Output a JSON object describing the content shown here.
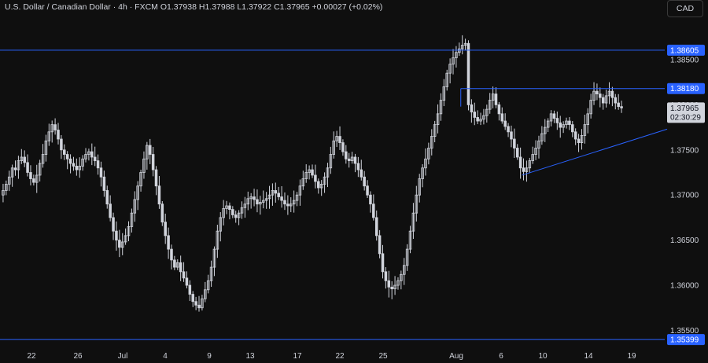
{
  "header": {
    "symbol": "U.S. Dollar / Canadian Dollar · 4h · FXCM",
    "open": "O1.37938",
    "high": "H1.37988",
    "low": "L1.37922",
    "close": "C1.37965",
    "change": "+0.00027 (+0.02%)"
  },
  "currency_button": "CAD",
  "colors": {
    "background": "#0f0f0f",
    "candle": "#d1d4dc",
    "line": "#2962ff",
    "badge": "#2962ff",
    "last_price_badge": "#d1d4dc"
  },
  "chart_data": {
    "type": "candlestick",
    "timeframe": "4h",
    "x_ticks": [
      "22",
      "26",
      "Jul",
      "4",
      "9",
      "13",
      "17",
      "22",
      "25",
      "Aug",
      "6",
      "10",
      "14",
      "19"
    ],
    "y_ticks": [
      "1.38500",
      "1.38000",
      "1.37500",
      "1.37000",
      "1.36500",
      "1.36000",
      "1.35500"
    ],
    "ylim": [
      1.3533,
      1.389
    ],
    "levels": [
      {
        "label": "1.38605",
        "value": 1.38605
      },
      {
        "label": "1.38180",
        "value": 1.3818
      },
      {
        "label": "1.35399",
        "value": 1.35399
      }
    ],
    "last_price": "1.37965",
    "countdown": "02:30:29",
    "trendline": {
      "start": [
        1.3722
      ],
      "end": [
        1.3773
      ]
    },
    "closes": [
      1.3705,
      1.3712,
      1.372,
      1.373,
      1.3728,
      1.3738,
      1.3742,
      1.3736,
      1.3725,
      1.3718,
      1.3714,
      1.3722,
      1.3735,
      1.3745,
      1.376,
      1.377,
      1.3778,
      1.3772,
      1.3762,
      1.375,
      1.3745,
      1.374,
      1.3735,
      1.3732,
      1.3728,
      1.3732,
      1.374,
      1.3745,
      1.3748,
      1.3742,
      1.3738,
      1.373,
      1.372,
      1.3705,
      1.369,
      1.3675,
      1.366,
      1.365,
      1.3642,
      1.3648,
      1.3655,
      1.3665,
      1.368,
      1.3695,
      1.371,
      1.3725,
      1.374,
      1.3755,
      1.3745,
      1.3728,
      1.371,
      1.369,
      1.367,
      1.3655,
      1.364,
      1.3628,
      1.362,
      1.3625,
      1.3615,
      1.3608,
      1.36,
      1.359,
      1.3582,
      1.3578,
      1.3575,
      1.3585,
      1.3595,
      1.3605,
      1.362,
      1.364,
      1.366,
      1.3675,
      1.3685,
      1.3688,
      1.3684,
      1.3678,
      1.3675,
      1.368,
      1.3686,
      1.369,
      1.3696,
      1.3698,
      1.3695,
      1.369,
      1.3692,
      1.3694,
      1.3696,
      1.37,
      1.3705,
      1.3702,
      1.3698,
      1.3694,
      1.369,
      1.3688,
      1.369,
      1.3694,
      1.37,
      1.371,
      1.3718,
      1.3725,
      1.3728,
      1.3722,
      1.3715,
      1.3708,
      1.3712,
      1.372,
      1.373,
      1.3745,
      1.376,
      1.3765,
      1.3758,
      1.3748,
      1.374,
      1.3738,
      1.3742,
      1.3735,
      1.3728,
      1.372,
      1.371,
      1.37,
      1.369,
      1.3675,
      1.3655,
      1.3635,
      1.3615,
      1.3605,
      1.3598,
      1.3596,
      1.36,
      1.3605,
      1.3612,
      1.3622,
      1.364,
      1.366,
      1.368,
      1.37,
      1.3718,
      1.373,
      1.374,
      1.3752,
      1.3765,
      1.3778,
      1.379,
      1.3805,
      1.382,
      1.3835,
      1.3845,
      1.3852,
      1.3858,
      1.3862,
      1.3866,
      1.3868,
      1.38,
      1.3792,
      1.3786,
      1.3782,
      1.3784,
      1.3788,
      1.3795,
      1.3805,
      1.3812,
      1.38,
      1.379,
      1.3782,
      1.3776,
      1.377,
      1.3762,
      1.3752,
      1.3742,
      1.373,
      1.3726,
      1.373,
      1.3738,
      1.3745,
      1.3752,
      1.376,
      1.3768,
      1.3775,
      1.3782,
      1.379,
      1.3785,
      1.378,
      1.3775,
      1.3778,
      1.3782,
      1.3778,
      1.377,
      1.3762,
      1.3758,
      1.3766,
      1.3778,
      1.379,
      1.3805,
      1.3815,
      1.3812,
      1.3808,
      1.3802,
      1.381,
      1.3815,
      1.3808,
      1.3802,
      1.3798,
      1.37965
    ]
  }
}
